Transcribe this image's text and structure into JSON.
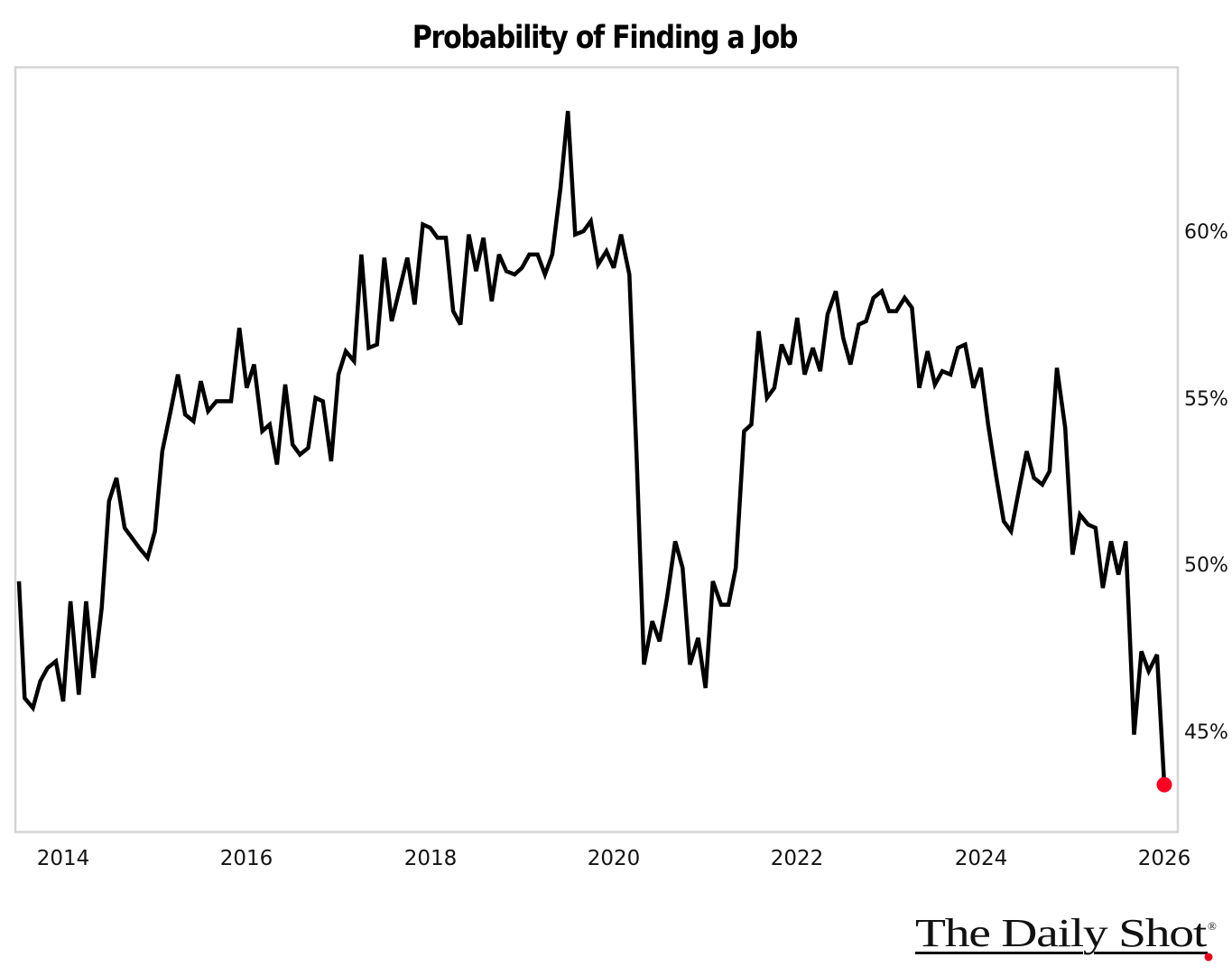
{
  "chart_data": {
    "type": "line",
    "title": "Probability of Finding a Job",
    "xlabel": "",
    "ylabel": "",
    "y_axis_position": "right",
    "ylim": [
      42,
      64.5
    ],
    "xlim": [
      2013.5,
      2026.15
    ],
    "yticks": [
      45,
      50,
      55,
      60
    ],
    "ytick_labels": [
      "45%",
      "50%",
      "55%",
      "60%"
    ],
    "xticks": [
      2014,
      2016,
      2018,
      2020,
      2022,
      2024,
      2026
    ],
    "xtick_labels": [
      "2014",
      "2016",
      "2018",
      "2020",
      "2022",
      "2024",
      "2026"
    ],
    "grid": false,
    "legend": null,
    "frequency": "monthly",
    "series": [
      {
        "name": "Probability of Finding a Job",
        "color": "#000000",
        "last_point_marker_color": "#ff0022",
        "x": [
          2013.5,
          2013.58,
          2013.67,
          2013.75,
          2013.83,
          2013.92,
          2014.0,
          2014.08,
          2014.17,
          2014.25,
          2014.33,
          2014.42,
          2014.5,
          2014.58,
          2014.67,
          2014.75,
          2014.83,
          2014.92,
          2015.0,
          2015.08,
          2015.17,
          2015.25,
          2015.33,
          2015.42,
          2015.5,
          2015.58,
          2015.67,
          2015.75,
          2015.83,
          2015.92,
          2016.0,
          2016.08,
          2016.17,
          2016.25,
          2016.33,
          2016.42,
          2016.5,
          2016.58,
          2016.67,
          2016.75,
          2016.83,
          2016.92,
          2017.0,
          2017.08,
          2017.17,
          2017.25,
          2017.33,
          2017.42,
          2017.5,
          2017.58,
          2017.67,
          2017.75,
          2017.83,
          2017.92,
          2018.0,
          2018.08,
          2018.17,
          2018.25,
          2018.33,
          2018.42,
          2018.5,
          2018.58,
          2018.67,
          2018.75,
          2018.83,
          2018.92,
          2019.0,
          2019.08,
          2019.17,
          2019.25,
          2019.33,
          2019.42,
          2019.5,
          2019.58,
          2019.67,
          2019.75,
          2019.83,
          2019.92,
          2020.0,
          2020.08,
          2020.17,
          2020.25,
          2020.33,
          2020.42,
          2020.5,
          2020.58,
          2020.67,
          2020.75,
          2020.83,
          2020.92,
          2021.0,
          2021.08,
          2021.17,
          2021.25,
          2021.33,
          2021.42,
          2021.5,
          2021.58,
          2021.67,
          2021.75,
          2021.83,
          2021.92,
          2022.0,
          2022.08,
          2022.17,
          2022.25,
          2022.33,
          2022.42,
          2022.5,
          2022.58,
          2022.67,
          2022.75,
          2022.83,
          2022.92,
          2023.0,
          2023.08,
          2023.17,
          2023.25,
          2023.33,
          2023.42,
          2023.5,
          2023.58,
          2023.67,
          2023.75,
          2023.83,
          2023.92,
          2024.0,
          2024.08,
          2024.17,
          2024.25,
          2024.33,
          2024.42,
          2024.5,
          2024.58,
          2024.67,
          2024.75,
          2024.83,
          2024.92,
          2025.0,
          2025.08,
          2025.17,
          2025.25,
          2025.33,
          2025.42,
          2025.5,
          2025.58,
          2025.67,
          2025.75,
          2025.83,
          2025.92,
          2026.0
        ],
        "values": [
          49.5,
          46.0,
          45.7,
          46.5,
          46.9,
          47.1,
          45.9,
          48.9,
          46.1,
          48.9,
          46.6,
          48.7,
          51.9,
          52.6,
          51.1,
          50.8,
          50.5,
          50.2,
          51.0,
          53.4,
          54.6,
          55.7,
          54.5,
          54.3,
          55.5,
          54.6,
          54.9,
          54.9,
          54.9,
          57.1,
          55.3,
          56.0,
          54.0,
          54.2,
          53.0,
          55.4,
          53.6,
          53.3,
          53.5,
          55.0,
          54.9,
          53.1,
          55.7,
          56.4,
          56.1,
          59.3,
          56.5,
          56.6,
          59.2,
          57.3,
          58.3,
          59.2,
          57.8,
          60.2,
          60.1,
          59.8,
          59.8,
          57.6,
          57.2,
          59.9,
          58.8,
          59.8,
          57.9,
          59.3,
          58.8,
          58.7,
          58.9,
          59.3,
          59.3,
          58.7,
          59.3,
          61.3,
          63.6,
          59.9,
          60.0,
          60.3,
          59.0,
          59.4,
          58.9,
          59.9,
          58.7,
          53.2,
          47.0,
          48.3,
          47.7,
          49.0,
          50.7,
          49.9,
          47.0,
          47.8,
          46.3,
          49.5,
          48.8,
          48.8,
          49.9,
          54.0,
          54.2,
          57.0,
          55.0,
          55.3,
          56.6,
          56.0,
          57.4,
          55.7,
          56.5,
          55.8,
          57.5,
          58.2,
          56.8,
          56.0,
          57.2,
          57.3,
          58.0,
          58.2,
          57.6,
          57.6,
          58.0,
          57.7,
          55.3,
          56.4,
          55.4,
          55.8,
          55.7,
          56.5,
          56.6,
          55.3,
          55.9,
          54.2,
          52.6,
          51.3,
          51.0,
          52.3,
          53.4,
          52.6,
          52.4,
          52.8,
          55.9,
          54.1,
          50.3,
          51.5,
          51.2,
          51.1,
          49.3,
          50.7,
          49.7,
          50.7,
          44.9,
          47.4,
          46.8,
          47.3,
          43.4
        ]
      }
    ]
  },
  "header": {
    "title": "Probability of Finding a Job"
  },
  "axis": {
    "y": [
      "60%",
      "55%",
      "50%",
      "45%"
    ],
    "x": [
      "2014",
      "2016",
      "2018",
      "2020",
      "2022",
      "2024",
      "2026"
    ]
  },
  "brand": {
    "name": "The Daily Shot",
    "mark": "®",
    "accent_color": "#e8001c"
  }
}
